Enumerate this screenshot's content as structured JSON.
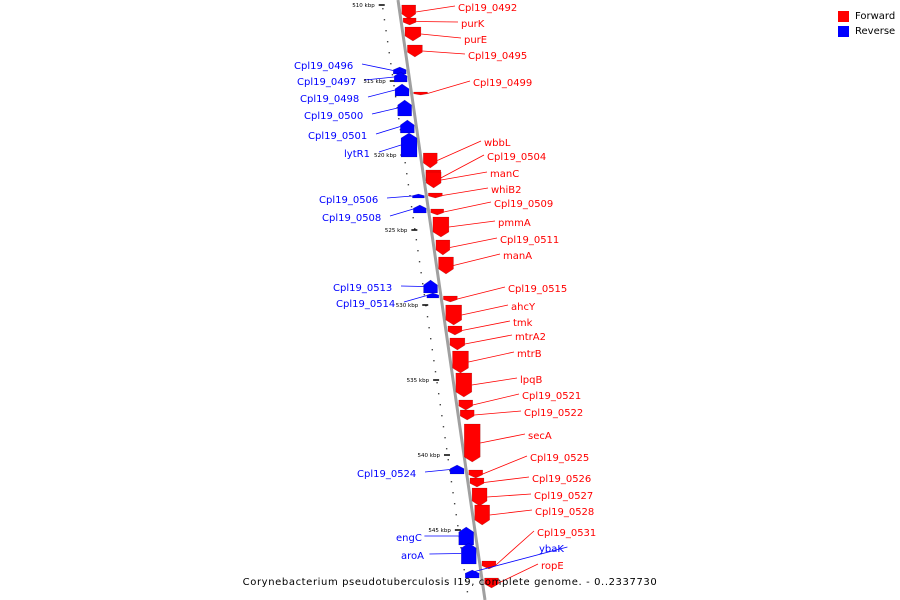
{
  "colors": {
    "forward": "#ff0000",
    "reverse": "#0000ff",
    "backbone": "#a8a8a8"
  },
  "legend": {
    "forward": "Forward",
    "reverse": "Reverse"
  },
  "caption": "Corynebacterium pseudotuberculosis I19, complete genome. - 0..2337730",
  "ticks": [
    "510 kbp",
    "515 kbp",
    "520 kbp",
    "525 kbp",
    "530 kbp",
    "535 kbp",
    "540 kbp",
    "545 kbp"
  ],
  "genes": [
    {
      "name": "Cpl19_0492",
      "strand": "forward"
    },
    {
      "name": "purK",
      "strand": "forward"
    },
    {
      "name": "purE",
      "strand": "forward"
    },
    {
      "name": "Cpl19_0495",
      "strand": "forward"
    },
    {
      "name": "Cpl19_0496",
      "strand": "reverse"
    },
    {
      "name": "Cpl19_0497",
      "strand": "reverse"
    },
    {
      "name": "Cpl19_0498",
      "strand": "reverse"
    },
    {
      "name": "Cpl19_0499",
      "strand": "forward"
    },
    {
      "name": "Cpl19_0500",
      "strand": "reverse"
    },
    {
      "name": "Cpl19_0501",
      "strand": "reverse"
    },
    {
      "name": "lytR1",
      "strand": "reverse"
    },
    {
      "name": "wbbL",
      "strand": "forward"
    },
    {
      "name": "Cpl19_0504",
      "strand": "forward"
    },
    {
      "name": "manC",
      "strand": "forward"
    },
    {
      "name": "whiB2",
      "strand": "forward"
    },
    {
      "name": "Cpl19_0506",
      "strand": "reverse"
    },
    {
      "name": "Cpl19_0509",
      "strand": "forward"
    },
    {
      "name": "Cpl19_0508",
      "strand": "reverse"
    },
    {
      "name": "pmmA",
      "strand": "forward"
    },
    {
      "name": "Cpl19_0511",
      "strand": "forward"
    },
    {
      "name": "manA",
      "strand": "forward"
    },
    {
      "name": "Cpl19_0513",
      "strand": "reverse"
    },
    {
      "name": "Cpl19_0515",
      "strand": "forward"
    },
    {
      "name": "Cpl19_0514",
      "strand": "reverse"
    },
    {
      "name": "ahcY",
      "strand": "forward"
    },
    {
      "name": "tmk",
      "strand": "forward"
    },
    {
      "name": "mtrA2",
      "strand": "forward"
    },
    {
      "name": "mtrB",
      "strand": "forward"
    },
    {
      "name": "lpqB",
      "strand": "forward"
    },
    {
      "name": "Cpl19_0521",
      "strand": "forward"
    },
    {
      "name": "Cpl19_0522",
      "strand": "forward"
    },
    {
      "name": "secA",
      "strand": "forward"
    },
    {
      "name": "Cpl19_0525",
      "strand": "forward"
    },
    {
      "name": "Cpl19_0524",
      "strand": "reverse"
    },
    {
      "name": "Cpl19_0526",
      "strand": "forward"
    },
    {
      "name": "Cpl19_0527",
      "strand": "forward"
    },
    {
      "name": "Cpl19_0528",
      "strand": "forward"
    },
    {
      "name": "engC",
      "strand": "reverse"
    },
    {
      "name": "Cpl19_0531",
      "strand": "forward"
    },
    {
      "name": "aroA",
      "strand": "reverse"
    },
    {
      "name": "ybaK",
      "strand": "reverse"
    },
    {
      "name": "ropE",
      "strand": "forward"
    }
  ]
}
